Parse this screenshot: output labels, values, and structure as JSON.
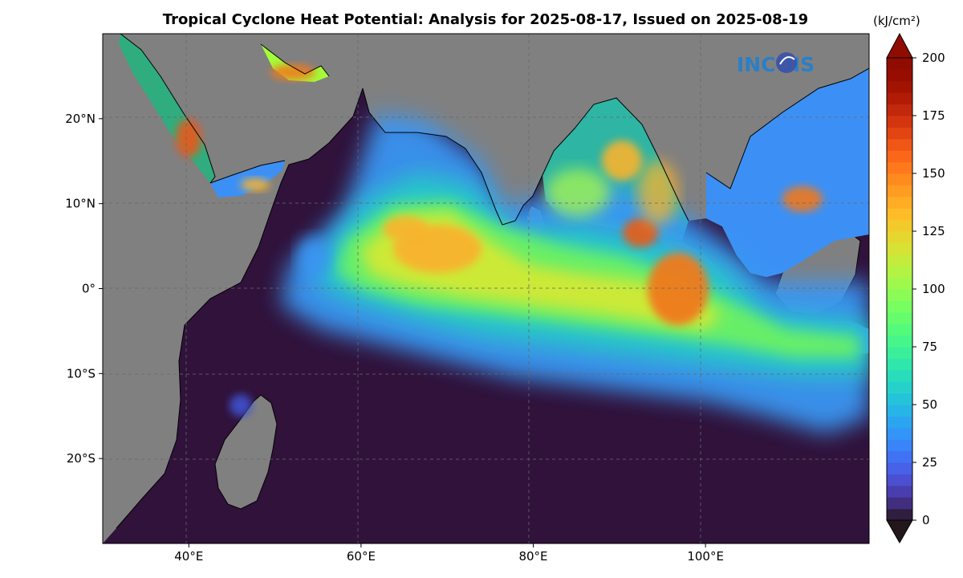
{
  "title": "Tropical Cyclone Heat Potential: Analysis for 2025-08-17, Issued on 2025-08-19",
  "colorbar_unit": "(kJ/cm²)",
  "logo_text": "INCOIS",
  "map": {
    "projection": "plate-carree",
    "lon_range": [
      30,
      119
    ],
    "lat_range": [
      -30,
      30
    ],
    "land_color": "#808080",
    "ocean_low_color": "#30123b",
    "gridlines": "dashed",
    "lon_ticks": [
      {
        "value": 40,
        "label": "40°E"
      },
      {
        "value": 60,
        "label": "60°E"
      },
      {
        "value": 80,
        "label": "80°E"
      },
      {
        "value": 100,
        "label": "100°E"
      }
    ],
    "lat_ticks": [
      {
        "value": 20,
        "label": "20°N"
      },
      {
        "value": 10,
        "label": "10°N"
      },
      {
        "value": 0,
        "label": "0°"
      },
      {
        "value": -10,
        "label": "10°S"
      },
      {
        "value": -20,
        "label": "20°S"
      }
    ]
  },
  "colorbar": {
    "min": 0,
    "max": 200,
    "levels": 40,
    "extend": "both",
    "colormap": "turbo",
    "ticks": [
      0,
      25,
      50,
      75,
      100,
      125,
      150,
      175,
      200
    ]
  }
}
